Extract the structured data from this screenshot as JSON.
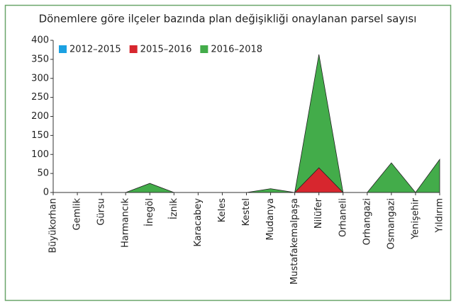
{
  "chart_data": {
    "type": "area",
    "title": "Dönemlere göre ilçeler bazında plan değişikliği onaylanan parsel sayısı",
    "categories": [
      "Büyükorhan",
      "Gemlik",
      "Gürsu",
      "Harmancık",
      "İnegöl",
      "İznik",
      "Karacabey",
      "Keles",
      "Kestel",
      "Mudanya",
      "Mustafakemalpaşa",
      "Nilüfer",
      "Orhaneli",
      "Orhangazi",
      "Osmangazi",
      "Yenişehir",
      "Yıldırım"
    ],
    "series": [
      {
        "name": "2012–2015",
        "color": "#1ba1e2",
        "values": [
          0,
          0,
          0,
          0,
          0,
          0,
          0,
          0,
          0,
          0,
          0,
          0,
          0,
          0,
          0,
          0,
          0
        ]
      },
      {
        "name": "2015–2016",
        "color": "#d7262e",
        "values": [
          0,
          0,
          0,
          0,
          0,
          0,
          0,
          0,
          0,
          0,
          0,
          65,
          0,
          0,
          0,
          0,
          0
        ]
      },
      {
        "name": "2016–2018",
        "color": "#43ac4a",
        "values": [
          0,
          0,
          0,
          0,
          24,
          0,
          0,
          0,
          0,
          10,
          0,
          363,
          0,
          0,
          78,
          0,
          87
        ]
      }
    ],
    "ylim": [
      0,
      400
    ],
    "yticks": [
      0,
      50,
      100,
      150,
      200,
      250,
      300,
      350,
      400
    ],
    "legend": "top-left"
  }
}
